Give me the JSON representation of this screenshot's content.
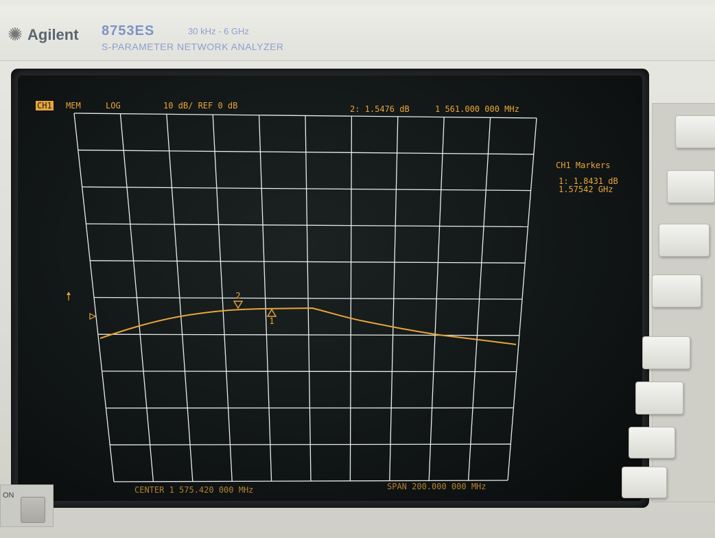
{
  "brand": {
    "logo_text": "Agilent",
    "model": "8753ES",
    "range": "30 kHz - 6 GHz",
    "subtitle": "S-PARAMETER NETWORK ANALYZER"
  },
  "display": {
    "channel": "CH1",
    "mode": "MEM",
    "format": "LOG",
    "scale": "10 dB/ REF 0 dB",
    "active_marker_readout": "2: 1.5476 dB",
    "active_marker_freq": "1 561.000 000 MHz",
    "marker_panel_title": "CH1 Markers",
    "marker1_value": "1: 1.8431 dB",
    "marker1_freq": "1.57542 GHz",
    "center": "CENTER 1 575.420 000 MHz",
    "span": "SPAN 200.000 000 MHz",
    "marker_2_label": "2",
    "marker_1_label": "1",
    "trace_color": "#e8a63a",
    "grid_color": "#e9ecee"
  },
  "power": {
    "label": "ON"
  }
}
